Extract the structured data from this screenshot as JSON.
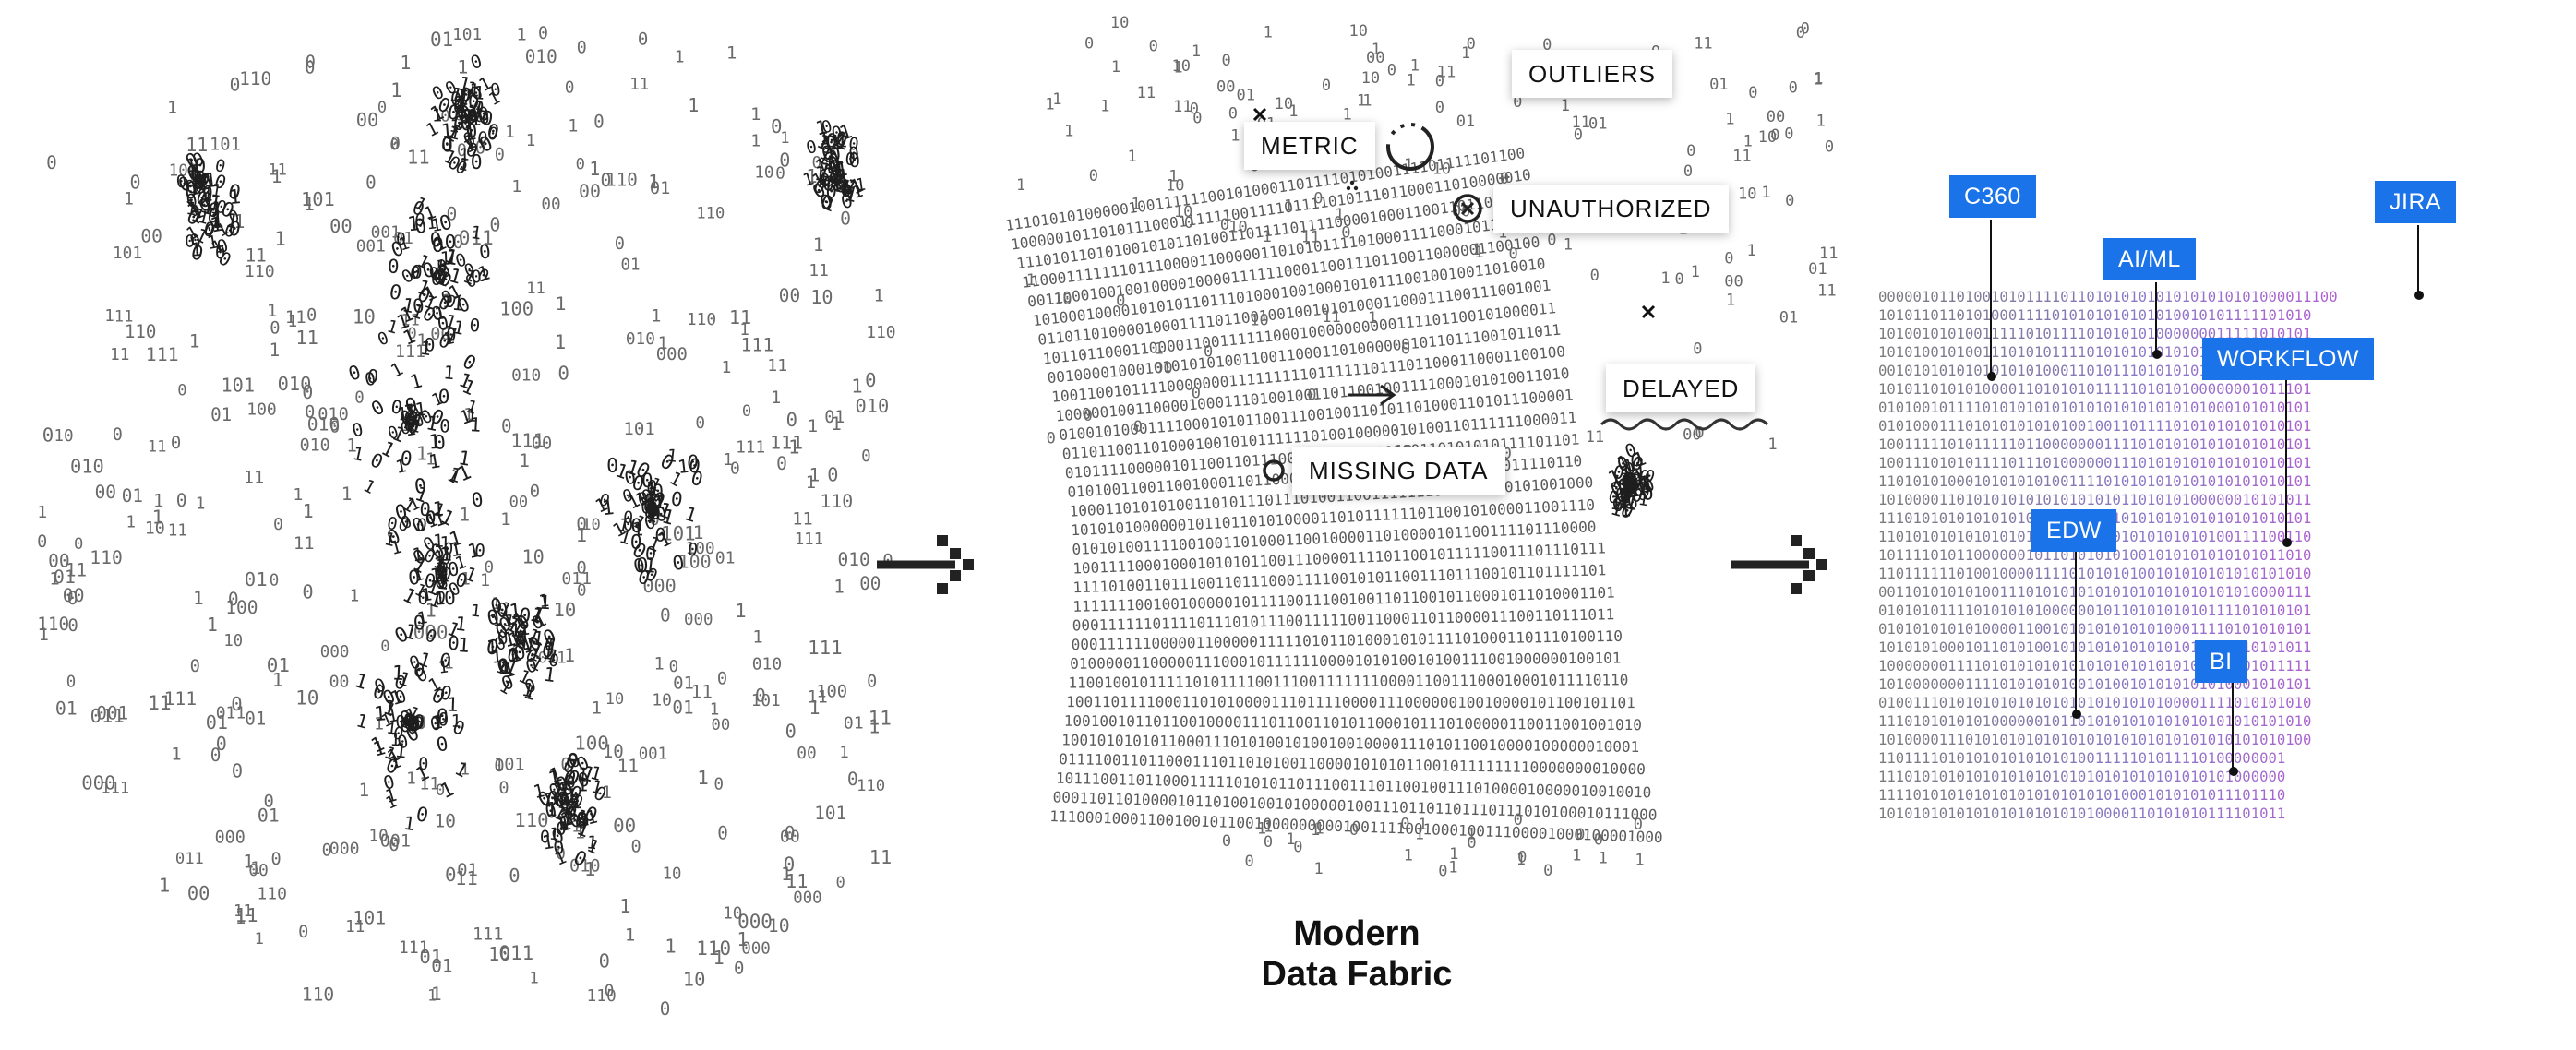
{
  "labels": {
    "outliers": "OUTLIERS",
    "metric": "METRIC",
    "unauthorized": "UNAUTHORIZED",
    "delayed": "DELAYED",
    "missing_data": "MISSING DATA"
  },
  "title": {
    "line1": "Modern",
    "line2": "Data Fabric"
  },
  "tags": {
    "c360": "C360",
    "ai_ml": "AI/ML",
    "jira": "JIRA",
    "workflow": "WORKFLOW",
    "edw": "EDW",
    "bi": "BI"
  },
  "binary_rows": [
    "00000101101001010111101101010101010101010101000011100",
    "10101101101010001111010101010101010010101111101010",
    "10100101010011111010111101010101000000011111010101",
    "10101001010011101010111101010101010101010101010101",
    "00101010101010101010001101011101010101010101010101",
    "10101101010100001101010101111101010100000001011101",
    "01010010111101010101010101010101010101000101010101",
    "01010001110101010101010010011011110101010101010101",
    "10011111010111110110000000111101010101010101010101",
    "10011101010111101110100000011101010101010101010101",
    "11010101000101010101001111010101010101010101010101",
    "10100001101010101010101010101101010100000010101011",
    "11101010101010101010100001110101010101010101010101",
    "11010101010101010101011110101010101010100111100110",
    "10111101011000000101101010101001010101010101011010",
    "11011111101001000011110101010100101010101010101010",
    "00110101010100111010101010101010101010101010000111",
    "01010101111010101010000001011010101010111101010101",
    "01010101010100001100101010101010100011110101010101",
    "10101010001011010100101010101010101010101010101011",
    "10000000111101010101010101010101010101010101011111",
    "10100000001111010101010010100101010101010001010101",
    "01001110101010101010101010101010100001111010101010",
    "11101010101010000001011010101010101010101010101010",
    "10100001110101010101010101010101010101010101010100",
    "11011110101010101010101001111101011110100000001",
    "11101010101010101010101010101010101010101000000",
    "11110101010101010101010101010001010101011101110",
    "10101010101010101010101010000110101010111101011"
  ]
}
